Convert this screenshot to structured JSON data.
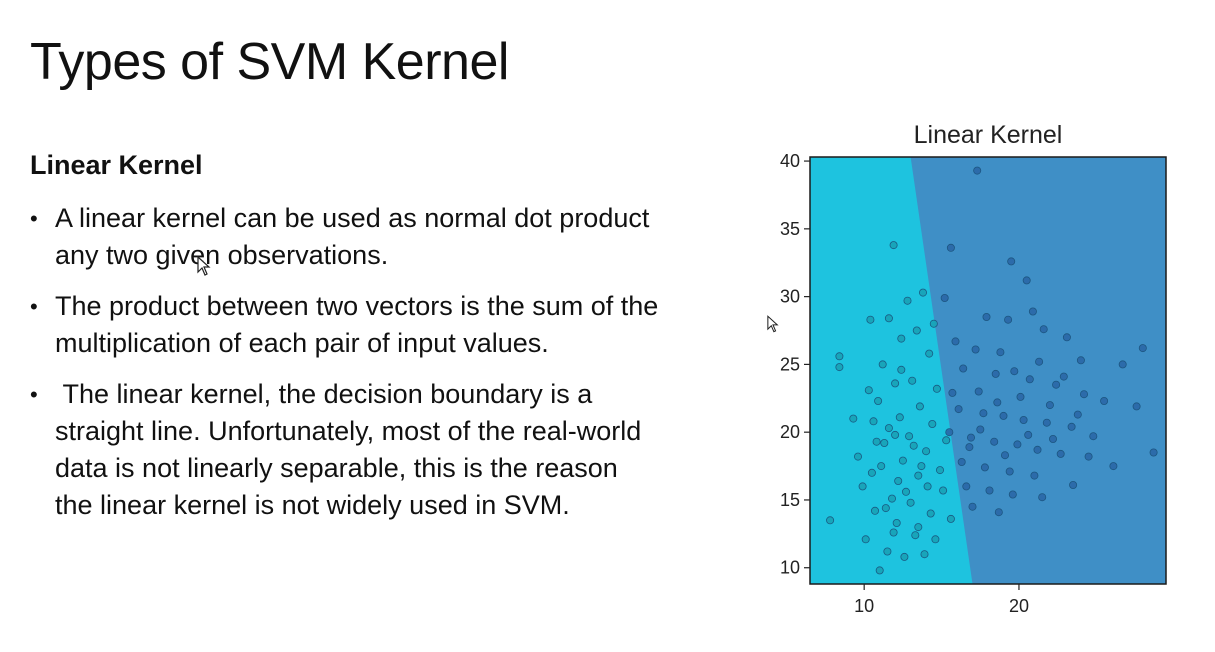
{
  "slide": {
    "title": "Types of SVM Kernel",
    "heading": "Linear Kernel",
    "bullets": [
      "A linear kernel can be used as normal dot product any two given observations.",
      "The product between two vectors is the sum of the multiplication of each pair of input values.",
      " The linear kernel, the decision boundary is a straight line. Unfortunately, most of the real-world data is not linearly separable, this is the reason the linear kernel is not widely used in SVM."
    ],
    "bullet_glyph": "•"
  },
  "chart_data": {
    "type": "scatter",
    "title": "Linear Kernel",
    "xlim": [
      6.5,
      29.5
    ],
    "ylim": [
      8.8,
      40.3
    ],
    "xticks": [
      10,
      20
    ],
    "yticks": [
      10,
      15,
      20,
      25,
      30,
      35,
      40
    ],
    "grid": false,
    "boundary": {
      "x1": 13.0,
      "y1": 40.3,
      "x2": 17.0,
      "y2": 8.8
    },
    "colors": {
      "region_left": "#1ec3df",
      "region_right": "#3f8fc6",
      "point_left": "#18a2b6",
      "point_right": "#2a68a8",
      "point_stroke": "#19507a"
    },
    "series": [
      {
        "values": [
          [
            7.8,
            13.5
          ],
          [
            8.4,
            24.8
          ],
          [
            8.4,
            25.6
          ],
          [
            9.3,
            21.0
          ],
          [
            9.6,
            18.2
          ],
          [
            9.9,
            16.0
          ],
          [
            10.1,
            12.1
          ],
          [
            10.4,
            28.3
          ],
          [
            10.6,
            20.8
          ],
          [
            10.7,
            14.2
          ],
          [
            10.9,
            22.3
          ],
          [
            11.0,
            9.8
          ],
          [
            11.1,
            17.5
          ],
          [
            11.2,
            25.0
          ],
          [
            11.3,
            19.2
          ],
          [
            11.5,
            11.2
          ],
          [
            11.6,
            28.4
          ],
          [
            11.8,
            15.1
          ],
          [
            11.9,
            33.8
          ],
          [
            12.0,
            23.6
          ],
          [
            12.1,
            13.3
          ],
          [
            12.3,
            21.1
          ],
          [
            12.4,
            26.9
          ],
          [
            12.5,
            17.9
          ],
          [
            12.6,
            10.8
          ],
          [
            12.8,
            29.7
          ],
          [
            12.9,
            19.7
          ],
          [
            13.0,
            14.8
          ],
          [
            13.1,
            23.8
          ],
          [
            13.3,
            12.4
          ],
          [
            13.4,
            27.5
          ],
          [
            13.5,
            16.8
          ],
          [
            13.6,
            21.9
          ],
          [
            13.8,
            30.3
          ],
          [
            13.9,
            11.0
          ],
          [
            14.0,
            18.6
          ],
          [
            14.2,
            25.8
          ],
          [
            14.3,
            14.0
          ],
          [
            14.4,
            20.6
          ],
          [
            14.6,
            12.1
          ],
          [
            14.7,
            23.2
          ],
          [
            14.9,
            17.2
          ],
          [
            15.1,
            15.7
          ],
          [
            15.3,
            19.4
          ],
          [
            15.6,
            13.6
          ],
          [
            12.2,
            16.4
          ],
          [
            11.6,
            20.3
          ],
          [
            10.5,
            17.0
          ],
          [
            13.2,
            19.0
          ],
          [
            12.7,
            15.6
          ],
          [
            11.4,
            14.4
          ],
          [
            13.7,
            17.5
          ],
          [
            12.0,
            19.8
          ],
          [
            14.1,
            16.0
          ],
          [
            10.8,
            19.3
          ],
          [
            11.9,
            12.6
          ],
          [
            13.5,
            13.0
          ],
          [
            12.4,
            24.6
          ],
          [
            14.5,
            28.0
          ],
          [
            10.3,
            23.1
          ]
        ]
      },
      {
        "values": [
          [
            17.3,
            39.3
          ],
          [
            15.6,
            33.6
          ],
          [
            19.5,
            32.6
          ],
          [
            20.5,
            31.2
          ],
          [
            15.2,
            29.9
          ],
          [
            17.9,
            28.5
          ],
          [
            19.3,
            28.3
          ],
          [
            21.6,
            27.6
          ],
          [
            23.1,
            27.0
          ],
          [
            28.0,
            26.2
          ],
          [
            26.7,
            25.0
          ],
          [
            16.4,
            24.7
          ],
          [
            18.5,
            24.3
          ],
          [
            20.7,
            23.9
          ],
          [
            22.4,
            23.5
          ],
          [
            24.2,
            22.8
          ],
          [
            25.5,
            22.3
          ],
          [
            27.6,
            21.9
          ],
          [
            16.1,
            21.7
          ],
          [
            17.7,
            21.4
          ],
          [
            19.0,
            21.2
          ],
          [
            20.3,
            20.9
          ],
          [
            21.8,
            20.7
          ],
          [
            23.4,
            20.4
          ],
          [
            15.5,
            20.0
          ],
          [
            16.9,
            19.6
          ],
          [
            18.4,
            19.3
          ],
          [
            19.9,
            19.1
          ],
          [
            21.2,
            18.7
          ],
          [
            22.7,
            18.4
          ],
          [
            24.5,
            18.2
          ],
          [
            16.3,
            17.8
          ],
          [
            17.8,
            17.4
          ],
          [
            19.4,
            17.1
          ],
          [
            21.0,
            16.8
          ],
          [
            26.1,
            17.5
          ],
          [
            16.6,
            16.0
          ],
          [
            18.1,
            15.7
          ],
          [
            19.6,
            15.4
          ],
          [
            21.5,
            15.2
          ],
          [
            17.0,
            14.5
          ],
          [
            18.7,
            14.1
          ],
          [
            22.2,
            19.5
          ],
          [
            20.1,
            22.6
          ],
          [
            17.4,
            23.0
          ],
          [
            18.8,
            25.9
          ],
          [
            21.3,
            25.2
          ],
          [
            22.9,
            24.1
          ],
          [
            15.9,
            26.7
          ],
          [
            23.8,
            21.3
          ],
          [
            24.8,
            19.7
          ],
          [
            20.6,
            19.8
          ],
          [
            19.1,
            18.3
          ],
          [
            17.5,
            20.2
          ],
          [
            18.6,
            22.2
          ],
          [
            16.8,
            18.9
          ],
          [
            28.7,
            18.5
          ],
          [
            23.5,
            16.1
          ],
          [
            15.7,
            22.9
          ],
          [
            17.2,
            26.1
          ],
          [
            20.9,
            28.9
          ],
          [
            19.7,
            24.5
          ],
          [
            22.0,
            22.0
          ],
          [
            24.0,
            25.3
          ]
        ]
      }
    ]
  },
  "cursors": [
    {
      "name": "mouse-pointer-icon"
    },
    {
      "name": "mouse-pointer-icon"
    }
  ]
}
